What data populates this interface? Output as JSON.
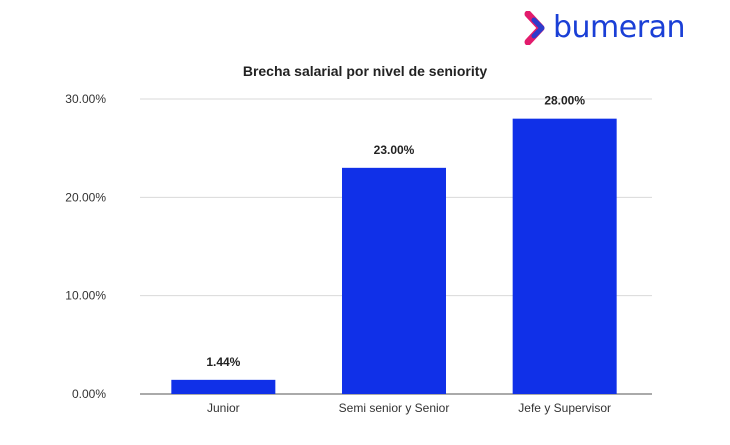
{
  "brand": {
    "name": "bumeran"
  },
  "colors": {
    "bar": "#1030e8",
    "grid": "#d9d9d9",
    "brand": "#1a3fd6",
    "brand_accent": "#e21b6c"
  },
  "chart_data": {
    "type": "bar",
    "title": "Brecha salarial por nivel de seniority",
    "categories": [
      "Junior",
      "Semi senior y Senior",
      "Jefe y Supervisor"
    ],
    "values": [
      1.44,
      23.0,
      28.0
    ],
    "value_labels": [
      "1.44%",
      "23.00%",
      "28.00%"
    ],
    "yticks": [
      0,
      10,
      20,
      30
    ],
    "ytick_labels": [
      "0.00%",
      "10.00%",
      "20.00%",
      "30.00%"
    ],
    "ylim": [
      0,
      30
    ],
    "grid": true,
    "legend": "none"
  }
}
